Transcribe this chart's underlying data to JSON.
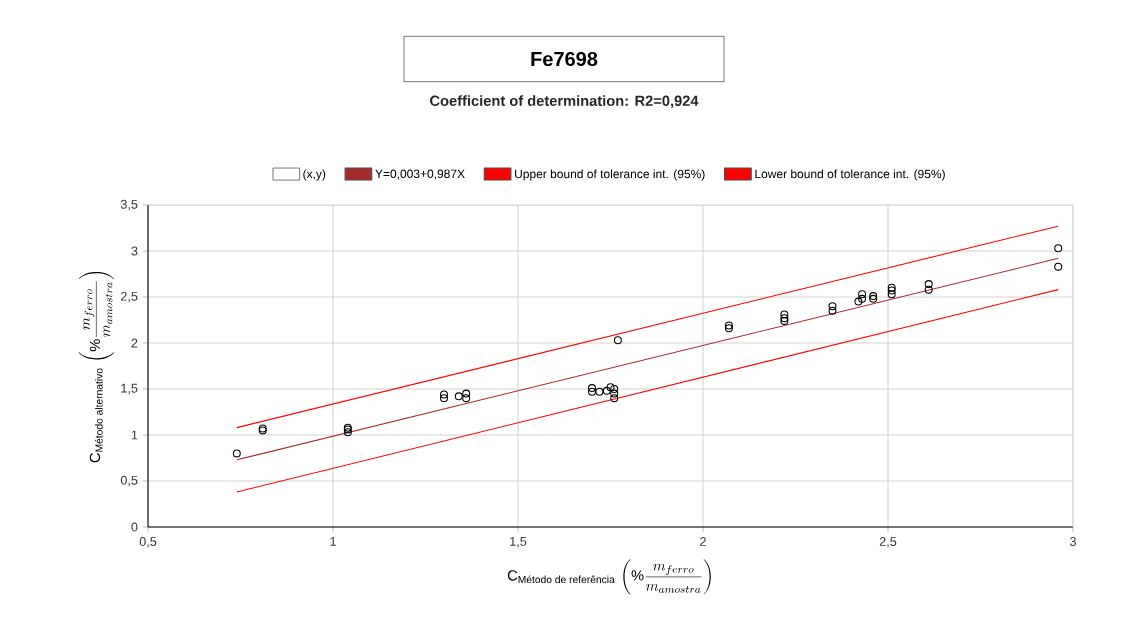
{
  "chart_data": {
    "type": "scatter",
    "title": "Fe7698",
    "subtitle": "Coefficient of determination: R2=0,924",
    "xlabel": "\\text{C}_{\\text{Método de referência}}\\,\\left(\\%\\dfrac{m_{ferro}}{m_{amostra}}\\right)",
    "ylabel": "\\text{C}_{\\text{Método alternativo}}\\,\\left(\\%\\dfrac{m_{ferro}}{m_{amostra}}\\right)",
    "xlim": [
      0.5,
      3
    ],
    "ylim": [
      0,
      3.5
    ],
    "xticks": [
      {
        "value": 0.5,
        "label": "0,5"
      },
      {
        "value": 1,
        "label": "1"
      },
      {
        "value": 1.5,
        "label": "1,5"
      },
      {
        "value": 2,
        "label": "2"
      },
      {
        "value": 2.5,
        "label": "2,5"
      },
      {
        "value": 3,
        "label": "3"
      }
    ],
    "yticks": [
      {
        "value": 0,
        "label": "0"
      },
      {
        "value": 0.5,
        "label": "0,5"
      },
      {
        "value": 1,
        "label": "1"
      },
      {
        "value": 1.5,
        "label": "1,5"
      },
      {
        "value": 2,
        "label": "2"
      },
      {
        "value": 2.5,
        "label": "2,5"
      },
      {
        "value": 3,
        "label": "3"
      },
      {
        "value": 3.5,
        "label": "3,5"
      }
    ],
    "grid": true,
    "legend": "top",
    "line_style": "solid",
    "series": [
      {
        "name": "(x,y)",
        "marker": "circle",
        "color": "#000000",
        "x": [
          0.74,
          0.81,
          0.81,
          1.04,
          1.04,
          1.04,
          1.3,
          1.3,
          1.34,
          1.36,
          1.36,
          1.7,
          1.7,
          1.72,
          1.74,
          1.75,
          1.76,
          1.76,
          1.76,
          1.77,
          2.07,
          2.07,
          2.22,
          2.22,
          2.22,
          2.35,
          2.35,
          2.42,
          2.43,
          2.43,
          2.46,
          2.46,
          2.51,
          2.51,
          2.51,
          2.61,
          2.61,
          2.96,
          2.96
        ],
        "values": [
          0.8,
          1.05,
          1.07,
          1.03,
          1.06,
          1.08,
          1.4,
          1.44,
          1.42,
          1.4,
          1.45,
          1.47,
          1.51,
          1.47,
          1.48,
          1.52,
          1.45,
          1.4,
          1.5,
          2.03,
          2.16,
          2.19,
          2.24,
          2.27,
          2.31,
          2.35,
          2.4,
          2.45,
          2.53,
          2.48,
          2.48,
          2.51,
          2.53,
          2.57,
          2.6,
          2.58,
          2.64,
          2.83,
          3.03
        ]
      },
      {
        "name": "Y=0,003+0,987X",
        "type": "line",
        "color": "#a52a2a",
        "x": [
          0.74,
          2.96
        ],
        "values": [
          0.73,
          2.92
        ]
      },
      {
        "name": "Upper bound of tolerance int. (95%)",
        "type": "line",
        "color": "#ff0000",
        "x": [
          0.74,
          2.96
        ],
        "values": [
          1.08,
          3.27
        ]
      },
      {
        "name": "Lower bound of tolerance int. (95%)",
        "type": "line",
        "color": "#ff0000",
        "x": [
          0.74,
          2.96
        ],
        "values": [
          0.38,
          2.58
        ]
      }
    ]
  }
}
